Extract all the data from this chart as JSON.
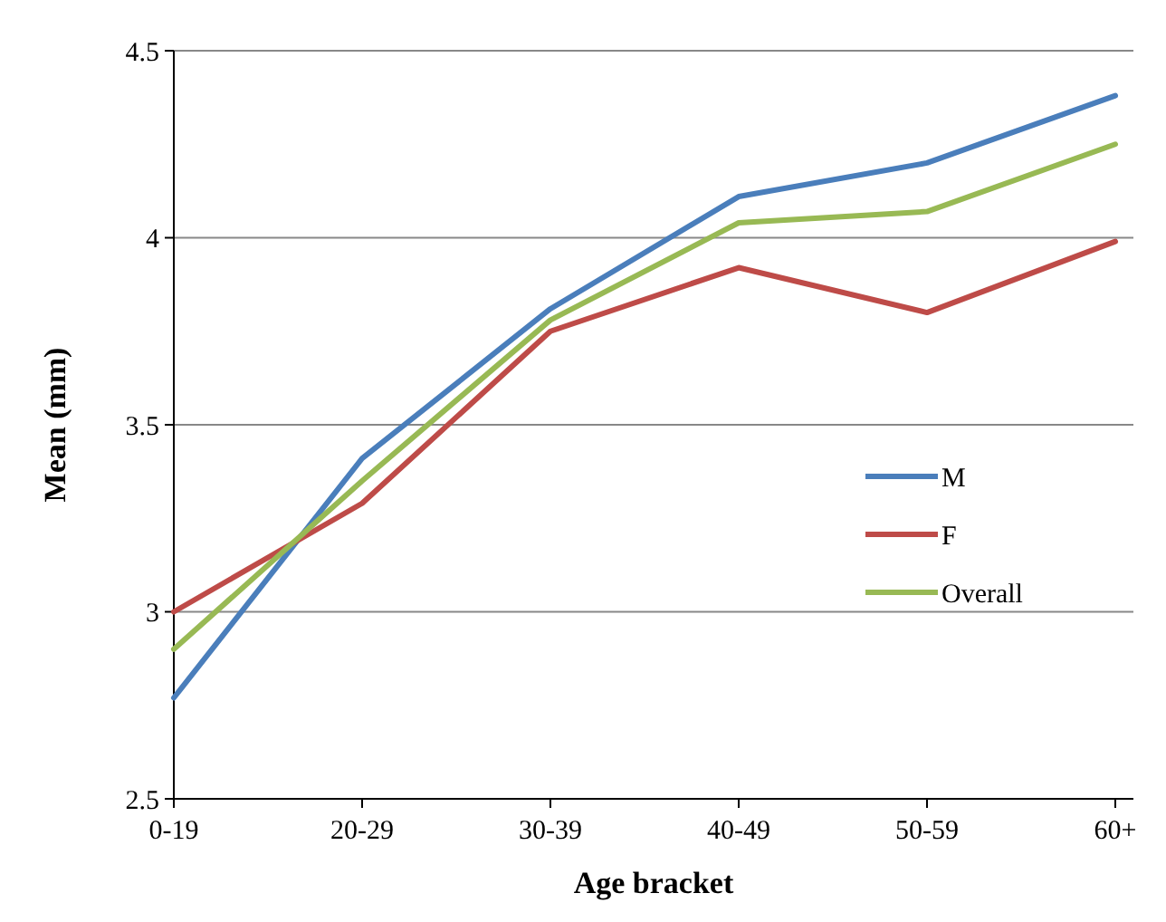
{
  "chart_data": {
    "type": "line",
    "xlabel": "Age bracket",
    "ylabel": "Mean (mm)",
    "categories": [
      "0-19",
      "20-29",
      "30-39",
      "40-49",
      "50-59",
      "60+"
    ],
    "series": [
      {
        "name": "M",
        "color": "#4a7ebb",
        "values": [
          2.77,
          3.41,
          3.81,
          4.11,
          4.2,
          4.38
        ]
      },
      {
        "name": "F",
        "color": "#be4b48",
        "values": [
          3.0,
          3.29,
          3.75,
          3.92,
          3.8,
          3.99
        ]
      },
      {
        "name": "Overall",
        "color": "#98b954",
        "values": [
          2.9,
          3.35,
          3.78,
          4.04,
          4.07,
          4.25
        ]
      }
    ],
    "ylim": [
      2.5,
      4.5
    ],
    "yticks": [
      2.5,
      3,
      3.5,
      4,
      4.5
    ],
    "grid": "y",
    "legend": "right",
    "marker": "none",
    "line_style": "solid"
  }
}
